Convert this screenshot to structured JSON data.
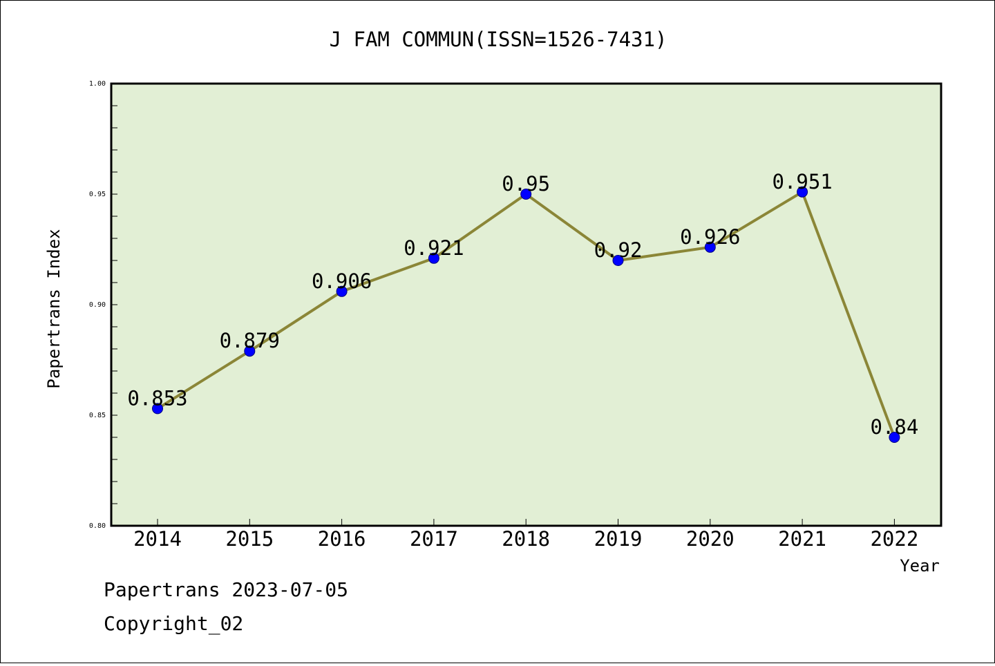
{
  "chart_data": {
    "type": "line",
    "title": "J FAM COMMUN(ISSN=1526-7431)",
    "xlabel": "Year",
    "ylabel": "Papertrans Index",
    "categories": [
      "2014",
      "2015",
      "2016",
      "2017",
      "2018",
      "2019",
      "2020",
      "2021",
      "2022"
    ],
    "series": [
      {
        "values": [
          0.853,
          0.879,
          0.906,
          0.921,
          0.95,
          0.92,
          0.926,
          0.951,
          0.84
        ],
        "labels": [
          "0.853",
          "0.879",
          "0.906",
          "0.921",
          "0.95",
          "0.92",
          "0.926",
          "0.951",
          "0.84"
        ]
      }
    ],
    "ylim": [
      0.8,
      1.0
    ],
    "yticks": [
      "0.80",
      "0.85",
      "0.90",
      "0.95",
      "1.00"
    ],
    "grid": false,
    "colors": {
      "plot_background": "#e2efd5",
      "line": "#8b8637",
      "marker": "#0000ff",
      "axes": "#000000"
    }
  },
  "footer": {
    "line1": "Papertrans 2023-07-05",
    "line2": "Copyright_02"
  }
}
